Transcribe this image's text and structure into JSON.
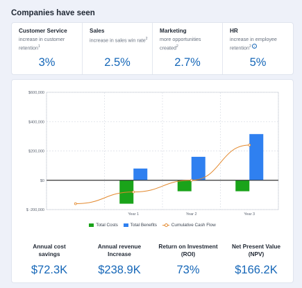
{
  "section_title": "Companies have seen",
  "stats": [
    {
      "title": "Customer Service",
      "desc_lines": [
        "increase in customer",
        "retention"
      ],
      "sup": "1",
      "value": "3%"
    },
    {
      "title": "Sales",
      "desc_lines": [
        "increase in sales win rate"
      ],
      "sup": "2",
      "value": "2.5%"
    },
    {
      "title": "Marketing",
      "desc_lines": [
        "more opportunities",
        "created"
      ],
      "sup": "2",
      "value": "2.7%"
    },
    {
      "title": "HR",
      "desc_lines": [
        "increase in employee",
        "retention"
      ],
      "sup": "2",
      "value": "5%",
      "info_icon": "info-icon"
    }
  ],
  "chart_data": {
    "type": "bar",
    "categories": [
      "",
      "Year 1",
      "Year 2",
      "Year 3"
    ],
    "series": [
      {
        "name": "Total Costs",
        "type": "bar",
        "color": "#1aa31a",
        "values": [
          null,
          -160000,
          -75000,
          -75000
        ]
      },
      {
        "name": "Total Benefits",
        "type": "bar",
        "color": "#2f80f0",
        "values": [
          null,
          80000,
          160000,
          315000
        ]
      },
      {
        "name": "Cumulative Cash Flow",
        "type": "line",
        "color": "#e3882c",
        "values": [
          -160000,
          -80000,
          0,
          240000
        ]
      }
    ],
    "y_ticks": [
      "$600,000",
      "$400,000",
      "$200,000",
      "$0",
      "$ -200,000"
    ],
    "y_tick_values": [
      600000,
      400000,
      200000,
      0,
      -200000
    ],
    "ylim": [
      -200000,
      600000
    ],
    "grid": true,
    "legend_position": "bottom"
  },
  "kpis": [
    {
      "label_lines": [
        "Annual cost",
        "savings"
      ],
      "value": "$72.3K"
    },
    {
      "label_lines": [
        "Annual revenue",
        "Increase"
      ],
      "value": "$238.9K"
    },
    {
      "label_lines": [
        "Return on Investment",
        "(ROI)"
      ],
      "value": "73%"
    },
    {
      "label_lines": [
        "Net Present Value",
        "(NPV)"
      ],
      "value": "$166.2K"
    }
  ]
}
